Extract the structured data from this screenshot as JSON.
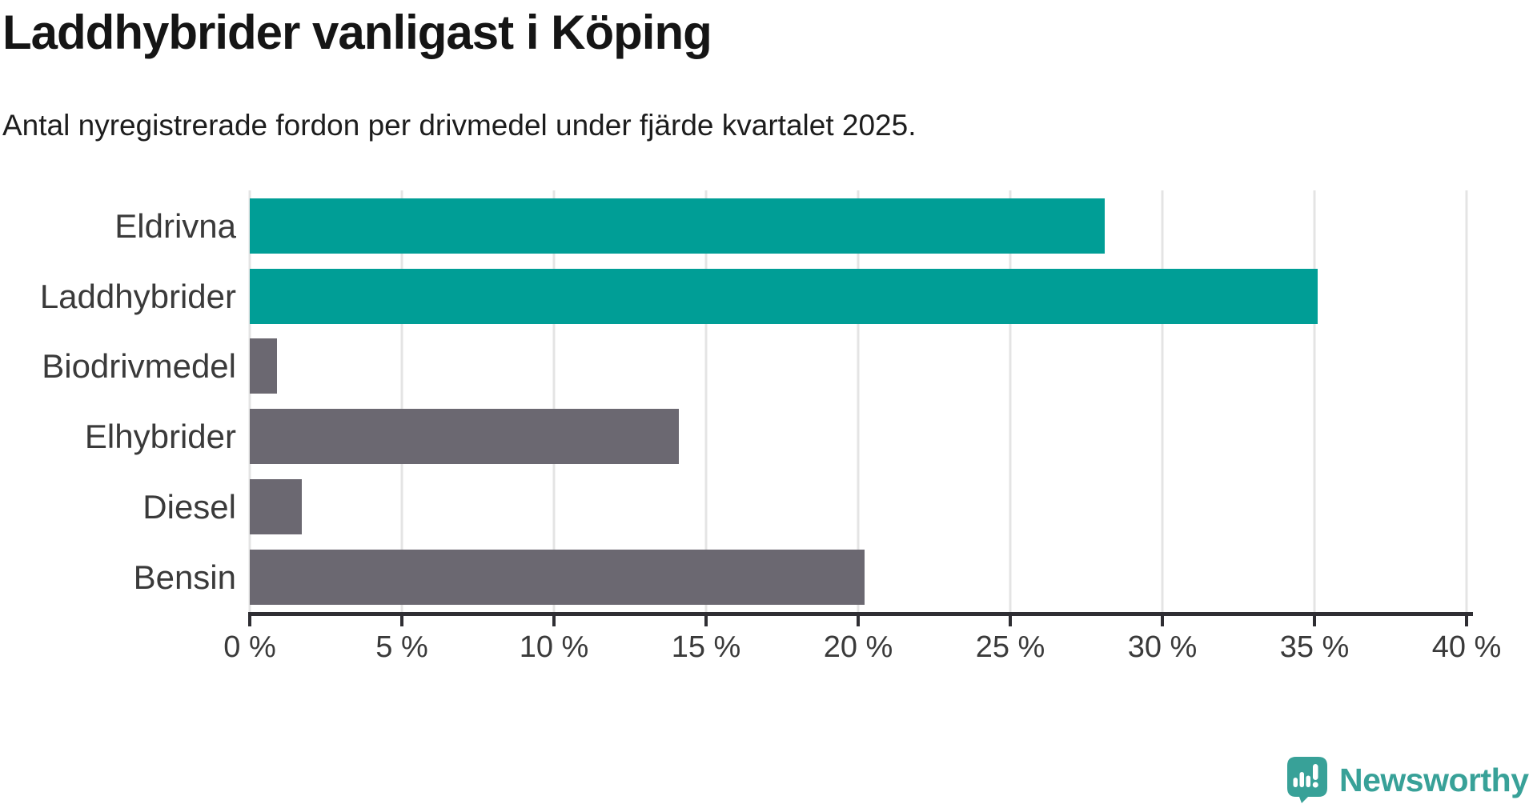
{
  "header": {
    "title": "Laddhybrider vanligast i Köping",
    "subtitle": "Antal nyregistrerade fordon per drivmedel under fjärde kvartalet 2025."
  },
  "chart_data": {
    "type": "bar",
    "orientation": "horizontal",
    "title": "Laddhybrider vanligast i Köping",
    "subtitle": "Antal nyregistrerade fordon per drivmedel under fjärde kvartalet 2025.",
    "categories": [
      "Eldrivna",
      "Laddhybrider",
      "Biodrivmedel",
      "Elhybrider",
      "Diesel",
      "Bensin"
    ],
    "values": [
      28.1,
      35.1,
      0.9,
      14.1,
      1.7,
      20.2
    ],
    "unit": "%",
    "xlim": [
      0,
      40
    ],
    "x_ticks": [
      0,
      5,
      10,
      15,
      20,
      25,
      30,
      35,
      40
    ],
    "x_tick_labels": [
      "0 %",
      "5 %",
      "10 %",
      "15 %",
      "20 %",
      "25 %",
      "30 %",
      "35 %",
      "40 %"
    ],
    "bar_colors": [
      "#009E96",
      "#009E96",
      "#6B6871",
      "#6B6871",
      "#6B6871",
      "#6B6871"
    ],
    "highlight_color": "#009E96",
    "default_color": "#6B6871",
    "grid": "vertical",
    "legend": "none"
  },
  "footer": {
    "brand": "Newsworthy",
    "brand_color": "#38A198"
  }
}
